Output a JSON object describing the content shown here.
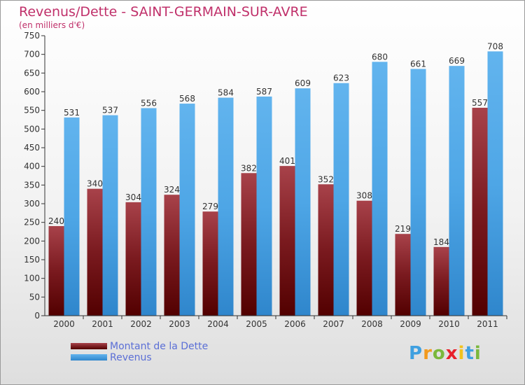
{
  "chart_data": {
    "type": "bar",
    "title": "Revenus/Dette - SAINT-GERMAIN-SUR-AVRE",
    "subtitle": "(en milliers d'€)",
    "categories": [
      "2000",
      "2001",
      "2002",
      "2003",
      "2004",
      "2005",
      "2006",
      "2007",
      "2008",
      "2009",
      "2010",
      "2011"
    ],
    "series": [
      {
        "name": "Montant de la Dette",
        "color": "#7a1a1f",
        "values": [
          240,
          340,
          304,
          324,
          279,
          382,
          401,
          352,
          308,
          219,
          184,
          557
        ]
      },
      {
        "name": "Revenus",
        "color": "#4ea6e6",
        "values": [
          531,
          537,
          556,
          568,
          584,
          587,
          609,
          623,
          680,
          661,
          669,
          708
        ]
      }
    ],
    "ylim": [
      0,
      750
    ],
    "ytick_step": 50,
    "grid": false,
    "legend_position": "bottom-left"
  },
  "logo": {
    "letters": [
      "P",
      "r",
      "o",
      "x",
      "i",
      "t",
      "i"
    ],
    "colors": [
      "#3fa0e0",
      "#f29a1d",
      "#7ab83c",
      "#e8202a",
      "#f2c21d",
      "#3fa0e0",
      "#7ab83c"
    ]
  }
}
